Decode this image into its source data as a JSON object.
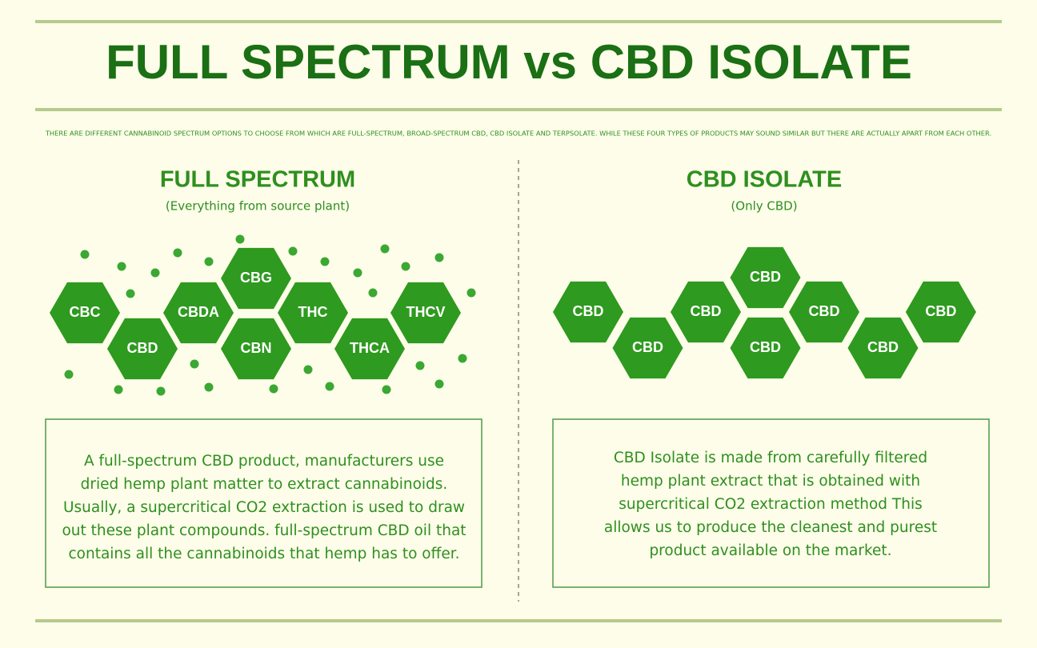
{
  "header": {
    "title": "FULL SPECTRUM  vs  CBD ISOLATE",
    "intro": "THERE ARE DIFFERENT CANNABINOID SPECTRUM OPTIONS TO CHOOSE FROM WHICH ARE FULL-SPECTRUM, BROAD-SPECTRUM CBD, CBD ISOLATE AND TERPSOLATE. WHILE THESE FOUR TYPES OF PRODUCTS MAY SOUND SIMILAR BUT THERE ARE ACTUALLY APART FROM EACH OTHER."
  },
  "left": {
    "heading": "FULL SPECTRUM",
    "subheading": "(Everything from source plant)",
    "hexagons": [
      "CBC",
      "CBD",
      "CBDA",
      "CBG",
      "CBN",
      "THC",
      "THCA",
      "THCV"
    ],
    "description": [
      "A full-spectrum CBD product, manufacturers use",
      "dried hemp plant matter to extract cannabinoids.",
      "Usually, a supercritical CO2 extraction is used to draw",
      "out these plant compounds. full-spectrum CBD oil that",
      "contains all the cannabinoids that hemp has to offer."
    ]
  },
  "right": {
    "heading": "CBD ISOLATE",
    "subheading": "(Only CBD)",
    "hexagons": [
      "CBD",
      "CBD",
      "CBD",
      "CBD",
      "CBD",
      "CBD",
      "CBD",
      "CBD"
    ],
    "description": [
      "CBD Isolate is made from carefully filtered",
      "hemp plant extract that is obtained with",
      "supercritical CO2 extraction method This",
      "allows us to produce the cleanest and purest",
      "product available on the market."
    ]
  }
}
